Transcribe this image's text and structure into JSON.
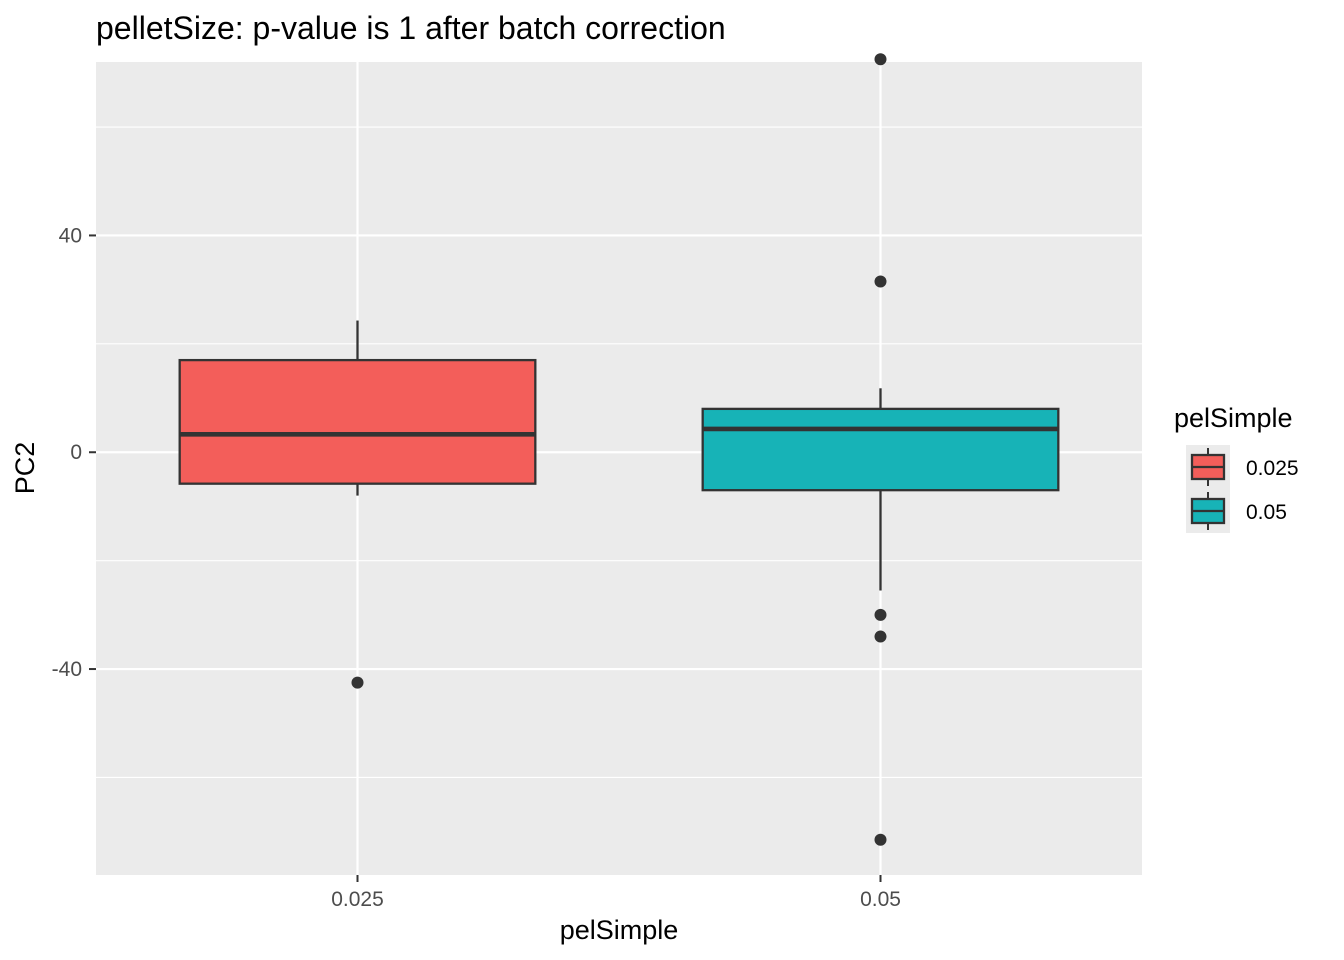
{
  "chart_data": {
    "type": "boxplot",
    "title": "pelletSize: p-value is 1 after batch correction",
    "xlabel": "pelSimple",
    "ylabel": "PC2",
    "categories": [
      "0.025",
      "0.05"
    ],
    "ylim": [
      -78,
      72
    ],
    "yticks": [
      -40,
      0,
      40
    ],
    "ytick_labels": [
      "-40",
      "0",
      "40"
    ],
    "grid": true,
    "legend": {
      "title": "pelSimple",
      "position": "right",
      "entries": [
        "0.025",
        "0.05"
      ]
    },
    "colors": {
      "0.025": "#F35E5A",
      "0.05": "#17B3B7"
    },
    "boxes": [
      {
        "category": "0.025",
        "whisker_low": -8,
        "q1": -5.8,
        "median": 3.3,
        "q3": 17,
        "whisker_high": 24.3,
        "outliers": [
          -42.5
        ]
      },
      {
        "category": "0.05",
        "whisker_low": -25.5,
        "q1": -7,
        "median": 4.3,
        "q3": 8,
        "whisker_high": 11.8,
        "outliers": [
          72.5,
          31.5,
          -30,
          -34,
          -71.5
        ]
      }
    ]
  }
}
